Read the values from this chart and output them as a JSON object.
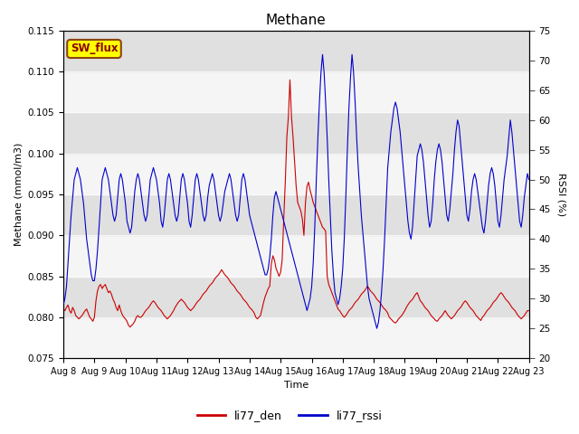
{
  "title": "Methane",
  "xlabel": "Time",
  "ylabel_left": "Methane (mmol/m3)",
  "ylabel_right": "RSSI (%)",
  "ylim_left": [
    0.075,
    0.115
  ],
  "ylim_right": [
    20,
    75
  ],
  "xlim": [
    0,
    15
  ],
  "x_tick_labels": [
    "Aug 8",
    "Aug 9",
    "Aug 10",
    "Aug 11",
    "Aug 12",
    "Aug 13",
    "Aug 14",
    "Aug 15",
    "Aug 16",
    "Aug 17",
    "Aug 18",
    "Aug 19",
    "Aug 20",
    "Aug 21",
    "Aug 22",
    "Aug 23"
  ],
  "color_red": "#cc0000",
  "color_blue": "#0000cc",
  "legend_labels": [
    "li77_den",
    "li77_rssi"
  ],
  "sw_flux_label": "SW_flux",
  "sw_flux_bg": "#ffff00",
  "sw_flux_border": "#8B4513",
  "band_colors_light": "#f0f0f0",
  "band_colors_dark": "#e0e0e0",
  "red_data_x": [
    0.0,
    0.05,
    0.1,
    0.15,
    0.2,
    0.25,
    0.3,
    0.35,
    0.4,
    0.45,
    0.5,
    0.55,
    0.6,
    0.65,
    0.7,
    0.75,
    0.8,
    0.85,
    0.9,
    0.95,
    1.0,
    1.05,
    1.1,
    1.15,
    1.2,
    1.25,
    1.3,
    1.35,
    1.4,
    1.45,
    1.5,
    1.55,
    1.6,
    1.65,
    1.7,
    1.75,
    1.8,
    1.85,
    1.9,
    1.95,
    2.0,
    2.05,
    2.1,
    2.15,
    2.2,
    2.25,
    2.3,
    2.35,
    2.4,
    2.45,
    2.5,
    2.55,
    2.6,
    2.65,
    2.7,
    2.75,
    2.8,
    2.85,
    2.9,
    2.95,
    3.0,
    3.05,
    3.1,
    3.15,
    3.2,
    3.25,
    3.3,
    3.35,
    3.4,
    3.45,
    3.5,
    3.55,
    3.6,
    3.65,
    3.7,
    3.75,
    3.8,
    3.85,
    3.9,
    3.95,
    4.0,
    4.05,
    4.1,
    4.15,
    4.2,
    4.25,
    4.3,
    4.35,
    4.4,
    4.45,
    4.5,
    4.55,
    4.6,
    4.65,
    4.7,
    4.75,
    4.8,
    4.85,
    4.9,
    4.95,
    5.0,
    5.05,
    5.1,
    5.15,
    5.2,
    5.25,
    5.3,
    5.35,
    5.4,
    5.45,
    5.5,
    5.55,
    5.6,
    5.65,
    5.7,
    5.75,
    5.8,
    5.85,
    5.9,
    5.95,
    6.0,
    6.05,
    6.1,
    6.15,
    6.2,
    6.25,
    6.3,
    6.35,
    6.4,
    6.45,
    6.5,
    6.55,
    6.6,
    6.65,
    6.7,
    6.75,
    6.8,
    6.85,
    6.9,
    6.95,
    7.0,
    7.05,
    7.1,
    7.15,
    7.2,
    7.25,
    7.3,
    7.35,
    7.4,
    7.45,
    7.5,
    7.55,
    7.6,
    7.65,
    7.7,
    7.75,
    7.8,
    7.85,
    7.9,
    7.95,
    8.0,
    8.05,
    8.1,
    8.15,
    8.2,
    8.25,
    8.3,
    8.35,
    8.4,
    8.45,
    8.5,
    8.55,
    8.6,
    8.65,
    8.7,
    8.75,
    8.8,
    8.85,
    8.9,
    8.95,
    9.0,
    9.05,
    9.1,
    9.15,
    9.2,
    9.25,
    9.3,
    9.35,
    9.4,
    9.45,
    9.5,
    9.55,
    9.6,
    9.65,
    9.7,
    9.75,
    9.8,
    9.85,
    9.9,
    9.95,
    10.0,
    10.05,
    10.1,
    10.15,
    10.2,
    10.25,
    10.3,
    10.35,
    10.4,
    10.45,
    10.5,
    10.55,
    10.6,
    10.65,
    10.7,
    10.75,
    10.8,
    10.85,
    10.9,
    10.95,
    11.0,
    11.05,
    11.1,
    11.15,
    11.2,
    11.25,
    11.3,
    11.35,
    11.4,
    11.45,
    11.5,
    11.55,
    11.6,
    11.65,
    11.7,
    11.75,
    11.8,
    11.85,
    11.9,
    11.95,
    12.0,
    12.05,
    12.1,
    12.15,
    12.2,
    12.25,
    12.3,
    12.35,
    12.4,
    12.45,
    12.5,
    12.55,
    12.6,
    12.65,
    12.7,
    12.75,
    12.8,
    12.85,
    12.9,
    12.95,
    13.0,
    13.05,
    13.1,
    13.15,
    13.2,
    13.25,
    13.3,
    13.35,
    13.4,
    13.45,
    13.5,
    13.55,
    13.6,
    13.65,
    13.7,
    13.75,
    13.8,
    13.85,
    13.9,
    13.95,
    14.0,
    14.05,
    14.1,
    14.15,
    14.2,
    14.25,
    14.3,
    14.35,
    14.4,
    14.45,
    14.5,
    14.55,
    14.6,
    14.65,
    14.7,
    14.75,
    14.8,
    14.85,
    14.9,
    14.95,
    15.0
  ],
  "red_data_y": [
    0.081,
    0.0808,
    0.0812,
    0.0815,
    0.0808,
    0.0805,
    0.0812,
    0.0808,
    0.0802,
    0.08,
    0.0798,
    0.08,
    0.0802,
    0.0805,
    0.0808,
    0.081,
    0.0805,
    0.08,
    0.0798,
    0.0795,
    0.08,
    0.082,
    0.0832,
    0.0838,
    0.084,
    0.0835,
    0.0838,
    0.084,
    0.0835,
    0.083,
    0.0832,
    0.0828,
    0.0822,
    0.0818,
    0.0812,
    0.0808,
    0.0815,
    0.0808,
    0.0803,
    0.08,
    0.0798,
    0.0795,
    0.079,
    0.0788,
    0.079,
    0.0792,
    0.0795,
    0.08,
    0.0802,
    0.08,
    0.08,
    0.0802,
    0.0805,
    0.0808,
    0.081,
    0.0812,
    0.0815,
    0.0818,
    0.082,
    0.0818,
    0.0815,
    0.0812,
    0.081,
    0.0808,
    0.0805,
    0.0802,
    0.08,
    0.0798,
    0.08,
    0.0802,
    0.0805,
    0.0808,
    0.0812,
    0.0815,
    0.0818,
    0.082,
    0.0822,
    0.082,
    0.0818,
    0.0815,
    0.0812,
    0.081,
    0.0808,
    0.081,
    0.0812,
    0.0815,
    0.0818,
    0.082,
    0.0822,
    0.0825,
    0.0828,
    0.083,
    0.0832,
    0.0835,
    0.0838,
    0.084,
    0.0842,
    0.0845,
    0.0848,
    0.085,
    0.0852,
    0.0855,
    0.0858,
    0.0855,
    0.0852,
    0.085,
    0.0848,
    0.0845,
    0.0842,
    0.084,
    0.0838,
    0.0835,
    0.0832,
    0.083,
    0.0828,
    0.0825,
    0.0822,
    0.082,
    0.0818,
    0.0815,
    0.0812,
    0.081,
    0.0808,
    0.0805,
    0.08,
    0.0798,
    0.08,
    0.0802,
    0.081,
    0.0818,
    0.0825,
    0.083,
    0.0835,
    0.0838,
    0.0865,
    0.0875,
    0.087,
    0.086,
    0.0855,
    0.085,
    0.0855,
    0.087,
    0.092,
    0.0965,
    0.102,
    0.1045,
    0.109,
    0.1045,
    0.102,
    0.099,
    0.096,
    0.094,
    0.0935,
    0.093,
    0.092,
    0.09,
    0.094,
    0.096,
    0.0965,
    0.0955,
    0.0948,
    0.094,
    0.0935,
    0.093,
    0.0925,
    0.092,
    0.0915,
    0.091,
    0.0908,
    0.0905,
    0.085,
    0.084,
    0.0835,
    0.083,
    0.0825,
    0.082,
    0.0815,
    0.081,
    0.0808,
    0.0805,
    0.0802,
    0.08,
    0.0802,
    0.0805,
    0.0808,
    0.081,
    0.0812,
    0.0815,
    0.0818,
    0.082,
    0.0822,
    0.0825,
    0.0828,
    0.083,
    0.0832,
    0.0835,
    0.0838,
    0.0835,
    0.0832,
    0.083,
    0.0828,
    0.0825,
    0.0822,
    0.082,
    0.0818,
    0.0815,
    0.0812,
    0.081,
    0.0808,
    0.0805,
    0.08,
    0.0798,
    0.0796,
    0.0794,
    0.0793,
    0.0795,
    0.0798,
    0.08,
    0.0802,
    0.0805,
    0.0808,
    0.0812,
    0.0815,
    0.0818,
    0.082,
    0.0822,
    0.0825,
    0.0828,
    0.083,
    0.0825,
    0.082,
    0.0818,
    0.0815,
    0.0812,
    0.081,
    0.0808,
    0.0805,
    0.0802,
    0.08,
    0.0798,
    0.0796,
    0.0795,
    0.0798,
    0.08,
    0.0802,
    0.0805,
    0.0808,
    0.0805,
    0.0802,
    0.08,
    0.0798,
    0.08,
    0.0802,
    0.0805,
    0.0808,
    0.081,
    0.0812,
    0.0815,
    0.0818,
    0.082,
    0.0818,
    0.0815,
    0.0812,
    0.081,
    0.0808,
    0.0805,
    0.0802,
    0.08,
    0.0798,
    0.0796,
    0.08,
    0.0802,
    0.0805,
    0.0808,
    0.081,
    0.0812,
    0.0815,
    0.0818,
    0.082,
    0.0822,
    0.0825,
    0.0828,
    0.083,
    0.0828,
    0.0825,
    0.0822,
    0.082,
    0.0818,
    0.0815,
    0.0812,
    0.081,
    0.0808,
    0.0805,
    0.0802,
    0.08,
    0.0798,
    0.08,
    0.0802,
    0.0805,
    0.0808,
    0.0808
  ],
  "blue_data_x": [
    0.0,
    0.05,
    0.1,
    0.15,
    0.2,
    0.25,
    0.3,
    0.35,
    0.4,
    0.45,
    0.5,
    0.55,
    0.6,
    0.65,
    0.7,
    0.75,
    0.8,
    0.85,
    0.9,
    0.95,
    1.0,
    1.05,
    1.1,
    1.15,
    1.2,
    1.25,
    1.3,
    1.35,
    1.4,
    1.45,
    1.5,
    1.55,
    1.6,
    1.65,
    1.7,
    1.75,
    1.8,
    1.85,
    1.9,
    1.95,
    2.0,
    2.05,
    2.1,
    2.15,
    2.2,
    2.25,
    2.3,
    2.35,
    2.4,
    2.45,
    2.5,
    2.55,
    2.6,
    2.65,
    2.7,
    2.75,
    2.8,
    2.85,
    2.9,
    2.95,
    3.0,
    3.05,
    3.1,
    3.15,
    3.2,
    3.25,
    3.3,
    3.35,
    3.4,
    3.45,
    3.5,
    3.55,
    3.6,
    3.65,
    3.7,
    3.75,
    3.8,
    3.85,
    3.9,
    3.95,
    4.0,
    4.05,
    4.1,
    4.15,
    4.2,
    4.25,
    4.3,
    4.35,
    4.4,
    4.45,
    4.5,
    4.55,
    4.6,
    4.65,
    4.7,
    4.75,
    4.8,
    4.85,
    4.9,
    4.95,
    5.0,
    5.05,
    5.1,
    5.15,
    5.2,
    5.25,
    5.3,
    5.35,
    5.4,
    5.45,
    5.5,
    5.55,
    5.6,
    5.65,
    5.7,
    5.75,
    5.8,
    5.85,
    5.9,
    5.95,
    6.0,
    6.05,
    6.1,
    6.15,
    6.2,
    6.25,
    6.3,
    6.35,
    6.4,
    6.45,
    6.5,
    6.55,
    6.6,
    6.65,
    6.7,
    6.75,
    6.8,
    6.85,
    6.9,
    6.95,
    7.0,
    7.05,
    7.1,
    7.15,
    7.2,
    7.25,
    7.3,
    7.35,
    7.4,
    7.45,
    7.5,
    7.55,
    7.6,
    7.65,
    7.7,
    7.75,
    7.8,
    7.85,
    7.9,
    7.95,
    8.0,
    8.05,
    8.1,
    8.15,
    8.2,
    8.25,
    8.3,
    8.35,
    8.4,
    8.45,
    8.5,
    8.55,
    8.6,
    8.65,
    8.7,
    8.75,
    8.8,
    8.85,
    8.9,
    8.95,
    9.0,
    9.05,
    9.1,
    9.15,
    9.2,
    9.25,
    9.3,
    9.35,
    9.4,
    9.45,
    9.5,
    9.55,
    9.6,
    9.65,
    9.7,
    9.75,
    9.8,
    9.85,
    9.9,
    9.95,
    10.0,
    10.05,
    10.1,
    10.15,
    10.2,
    10.25,
    10.3,
    10.35,
    10.4,
    10.45,
    10.5,
    10.55,
    10.6,
    10.65,
    10.7,
    10.75,
    10.8,
    10.85,
    10.9,
    10.95,
    11.0,
    11.05,
    11.1,
    11.15,
    11.2,
    11.25,
    11.3,
    11.35,
    11.4,
    11.45,
    11.5,
    11.55,
    11.6,
    11.65,
    11.7,
    11.75,
    11.8,
    11.85,
    11.9,
    11.95,
    12.0,
    12.05,
    12.1,
    12.15,
    12.2,
    12.25,
    12.3,
    12.35,
    12.4,
    12.45,
    12.5,
    12.55,
    12.6,
    12.65,
    12.7,
    12.75,
    12.8,
    12.85,
    12.9,
    12.95,
    13.0,
    13.05,
    13.1,
    13.15,
    13.2,
    13.25,
    13.3,
    13.35,
    13.4,
    13.45,
    13.5,
    13.55,
    13.6,
    13.65,
    13.7,
    13.75,
    13.8,
    13.85,
    13.9,
    13.95,
    14.0,
    14.05,
    14.1,
    14.15,
    14.2,
    14.25,
    14.3,
    14.35,
    14.4,
    14.45,
    14.5,
    14.55,
    14.6,
    14.65,
    14.7,
    14.75,
    14.8,
    14.85,
    14.9,
    14.95,
    15.0
  ],
  "blue_data_y": [
    29,
    30,
    32,
    36,
    40,
    44,
    47,
    50,
    51,
    52,
    51,
    50,
    48,
    46,
    43,
    40,
    38,
    36,
    34,
    33,
    33,
    35,
    38,
    42,
    46,
    50,
    51,
    52,
    51,
    50,
    48,
    46,
    44,
    43,
    44,
    47,
    50,
    51,
    50,
    48,
    46,
    43,
    42,
    41,
    42,
    45,
    48,
    50,
    51,
    50,
    48,
    46,
    44,
    43,
    44,
    47,
    50,
    51,
    52,
    51,
    50,
    48,
    46,
    43,
    42,
    44,
    47,
    50,
    51,
    50,
    48,
    46,
    44,
    43,
    44,
    47,
    50,
    51,
    50,
    48,
    46,
    43,
    42,
    44,
    47,
    50,
    51,
    50,
    48,
    46,
    44,
    43,
    44,
    47,
    49,
    50,
    51,
    50,
    48,
    46,
    44,
    43,
    44,
    46,
    48,
    49,
    50,
    51,
    50,
    48,
    46,
    44,
    43,
    44,
    47,
    50,
    51,
    50,
    48,
    46,
    44,
    43,
    42,
    41,
    40,
    39,
    38,
    37,
    36,
    35,
    34,
    34,
    35,
    37,
    40,
    44,
    47,
    48,
    47,
    46,
    45,
    44,
    43,
    42,
    41,
    40,
    39,
    38,
    37,
    36,
    35,
    34,
    33,
    32,
    31,
    30,
    29,
    28,
    29,
    30,
    32,
    36,
    42,
    50,
    57,
    63,
    68,
    71,
    68,
    63,
    57,
    50,
    44,
    38,
    34,
    31,
    30,
    29,
    30,
    32,
    35,
    40,
    47,
    55,
    62,
    67,
    71,
    68,
    63,
    57,
    52,
    48,
    44,
    41,
    38,
    35,
    32,
    30,
    29,
    28,
    27,
    26,
    25,
    26,
    28,
    31,
    35,
    40,
    46,
    52,
    55,
    58,
    60,
    62,
    63,
    62,
    60,
    58,
    55,
    52,
    49,
    46,
    43,
    41,
    40,
    42,
    46,
    50,
    54,
    55,
    56,
    55,
    53,
    50,
    47,
    44,
    42,
    43,
    46,
    50,
    53,
    55,
    56,
    55,
    53,
    50,
    47,
    44,
    43,
    45,
    48,
    51,
    55,
    58,
    60,
    59,
    56,
    53,
    50,
    47,
    44,
    43,
    45,
    48,
    50,
    51,
    50,
    48,
    46,
    44,
    42,
    41,
    43,
    46,
    49,
    51,
    52,
    51,
    49,
    46,
    43,
    42,
    44,
    47,
    50,
    52,
    54,
    57,
    60,
    58,
    55,
    52,
    49,
    46,
    43,
    42,
    44,
    47,
    49,
    51,
    50
  ]
}
